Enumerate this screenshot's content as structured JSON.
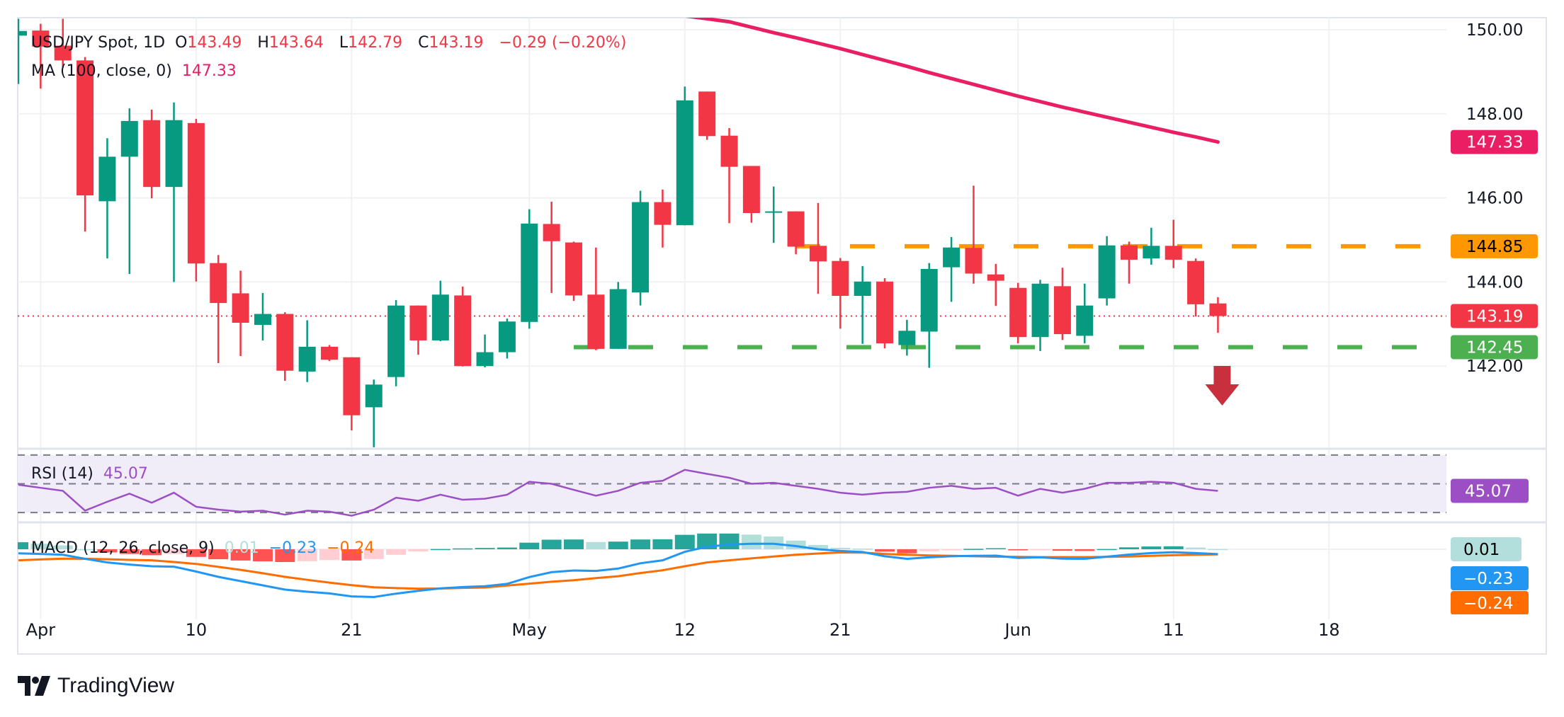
{
  "header": {
    "symbol": "USD/JPY Spot, 1D",
    "o_label": "O",
    "o_value": "143.49",
    "h_label": "H",
    "h_value": "143.64",
    "l_label": "L",
    "l_value": "142.79",
    "c_label": "C",
    "c_value": "143.19",
    "change": "−0.29 (−0.20%)"
  },
  "ma_legend": {
    "label": "MA (100, close, 0)",
    "value": "147.33"
  },
  "rsi_legend": {
    "label": "RSI (14)",
    "value": "45.07"
  },
  "macd_legend": {
    "label": "MACD (12, 26, close, 9)",
    "hist": "0.01",
    "macd": "−0.23",
    "signal": "−0.24"
  },
  "branding": {
    "name": "TradingView"
  },
  "colors": {
    "up": "#089981",
    "down": "#f23645",
    "ma": "#e91e63",
    "resistance": "#ff9800",
    "support": "#4caf50",
    "rsi": "#9c4fc4",
    "macd": "#2196f3",
    "signal": "#ff6d00",
    "hist_up_strong": "#26a69a",
    "hist_up_weak": "#b2dfdb",
    "hist_down_strong": "#ff5252",
    "hist_down_weak": "#ffcdd2",
    "arrow": "#c9303d"
  },
  "chart_data": {
    "type": "candlestick",
    "title": "USD/JPY Spot, 1D",
    "candles_ohlc": [
      [
        149.86,
        150.26,
        148.71,
        149.97
      ],
      [
        149.98,
        150.14,
        148.6,
        149.6
      ],
      [
        149.62,
        150.26,
        149.1,
        149.27
      ],
      [
        149.27,
        149.35,
        145.2,
        146.06
      ],
      [
        145.92,
        147.42,
        144.56,
        146.98
      ],
      [
        146.98,
        148.13,
        144.19,
        147.83
      ],
      [
        147.85,
        148.1,
        145.99,
        146.26
      ],
      [
        146.26,
        148.27,
        144.0,
        147.85
      ],
      [
        147.78,
        147.88,
        144.01,
        144.44
      ],
      [
        144.45,
        144.64,
        142.07,
        143.5
      ],
      [
        143.73,
        144.27,
        142.24,
        143.03
      ],
      [
        142.98,
        143.74,
        142.61,
        143.24
      ],
      [
        143.24,
        143.28,
        141.65,
        141.89
      ],
      [
        141.87,
        143.09,
        141.62,
        142.46
      ],
      [
        142.46,
        142.5,
        142.12,
        142.15
      ],
      [
        142.21,
        142.21,
        140.47,
        140.83
      ],
      [
        141.02,
        141.68,
        140.07,
        141.56
      ],
      [
        141.74,
        143.57,
        141.52,
        143.44
      ],
      [
        143.44,
        143.44,
        142.27,
        142.61
      ],
      [
        142.61,
        144.03,
        142.59,
        143.7
      ],
      [
        143.68,
        143.89,
        141.99,
        142.0
      ],
      [
        142.0,
        142.75,
        141.97,
        142.33
      ],
      [
        142.33,
        143.13,
        142.18,
        143.06
      ],
      [
        143.05,
        145.73,
        142.89,
        145.39
      ],
      [
        145.38,
        145.91,
        143.74,
        144.97
      ],
      [
        144.94,
        144.96,
        143.55,
        143.68
      ],
      [
        143.7,
        144.82,
        142.38,
        142.41
      ],
      [
        142.41,
        144.0,
        142.41,
        143.83
      ],
      [
        143.75,
        146.17,
        143.44,
        145.9
      ],
      [
        145.9,
        146.2,
        144.82,
        145.36
      ],
      [
        145.35,
        148.65,
        145.35,
        148.32
      ],
      [
        148.53,
        148.53,
        147.38,
        147.47
      ],
      [
        147.48,
        147.66,
        145.4,
        146.74
      ],
      [
        146.76,
        146.76,
        145.41,
        145.64
      ],
      [
        145.66,
        146.27,
        144.93,
        145.68
      ],
      [
        145.68,
        145.68,
        144.66,
        144.84
      ],
      [
        144.86,
        145.88,
        143.72,
        144.49
      ],
      [
        144.5,
        144.57,
        142.89,
        143.67
      ],
      [
        143.67,
        144.38,
        142.53,
        144.01
      ],
      [
        144.01,
        144.09,
        142.42,
        142.54
      ],
      [
        142.5,
        143.1,
        142.25,
        142.84
      ],
      [
        142.82,
        144.45,
        141.96,
        144.31
      ],
      [
        144.35,
        145.07,
        143.53,
        144.82
      ],
      [
        144.81,
        146.29,
        143.96,
        144.2
      ],
      [
        144.18,
        144.43,
        143.43,
        144.03
      ],
      [
        143.86,
        143.98,
        142.54,
        142.69
      ],
      [
        142.69,
        144.05,
        142.36,
        143.96
      ],
      [
        143.9,
        144.34,
        142.62,
        142.76
      ],
      [
        142.72,
        143.96,
        142.54,
        143.44
      ],
      [
        143.61,
        145.09,
        143.44,
        144.87
      ],
      [
        144.87,
        144.96,
        143.96,
        144.53
      ],
      [
        144.56,
        145.29,
        144.41,
        144.86
      ],
      [
        144.86,
        145.48,
        144.33,
        144.53
      ],
      [
        144.5,
        144.56,
        143.18,
        143.47
      ],
      [
        143.49,
        143.64,
        142.79,
        143.19
      ]
    ],
    "ma100": [
      null,
      null,
      null,
      null,
      null,
      null,
      null,
      null,
      null,
      null,
      null,
      null,
      null,
      null,
      null,
      null,
      null,
      null,
      null,
      null,
      null,
      null,
      null,
      null,
      null,
      null,
      null,
      null,
      null,
      150.4,
      150.33,
      150.26,
      150.19,
      150.06,
      149.93,
      149.81,
      149.68,
      149.55,
      149.41,
      149.27,
      149.13,
      148.98,
      148.84,
      148.7,
      148.56,
      148.42,
      148.29,
      148.16,
      148.04,
      147.92,
      147.8,
      147.68,
      147.56,
      147.45,
      147.33
    ],
    "levels": {
      "resistance": 144.85,
      "support": 142.45,
      "last_price": 143.19,
      "ma_last": 147.33
    },
    "price_axis": {
      "range": [
        140.05,
        150.28
      ],
      "ticks": [
        {
          "value": 150,
          "label": "150.00"
        },
        {
          "value": 148,
          "label": "148.00"
        },
        {
          "value": 146,
          "label": "146.00"
        },
        {
          "value": 144,
          "label": "144.00"
        },
        {
          "value": 142,
          "label": "142.00"
        }
      ],
      "tags": [
        {
          "value": 147.33,
          "label": "147.33",
          "kind": "ma"
        },
        {
          "value": 144.85,
          "label": "144.85",
          "kind": "resistance"
        },
        {
          "value": 143.19,
          "label": "143.19",
          "kind": "last"
        },
        {
          "value": 142.45,
          "label": "142.45",
          "kind": "support"
        }
      ]
    },
    "time_axis": {
      "ticks": [
        {
          "bar": 1,
          "label": "Apr"
        },
        {
          "bar": 8,
          "label": "10"
        },
        {
          "bar": 15,
          "label": "21"
        },
        {
          "bar": 23,
          "label": "May"
        },
        {
          "bar": 30,
          "label": "12"
        },
        {
          "bar": 37,
          "label": "21"
        },
        {
          "bar": 45,
          "label": "Jun"
        },
        {
          "bar": 52,
          "label": "11"
        },
        {
          "bar": 59,
          "label": "18"
        }
      ]
    },
    "annotation": {
      "type": "down-arrow",
      "bar": 54,
      "price": 141.6
    },
    "rsi": {
      "levels": [
        70,
        50,
        30
      ],
      "values": [
        49.3,
        47.2,
        45.1,
        31.3,
        37.5,
        43.1,
        36.8,
        43.8,
        34.0,
        32.0,
        30.6,
        31.3,
        28.5,
        31.3,
        30.6,
        27.8,
        32.0,
        40.3,
        38.2,
        42.4,
        38.9,
        39.6,
        42.4,
        51.4,
        50.0,
        45.8,
        41.7,
        45.1,
        50.7,
        52.1,
        59.7,
        56.9,
        54.2,
        50.0,
        50.7,
        48.6,
        46.5,
        43.8,
        42.4,
        43.8,
        44.4,
        47.2,
        48.6,
        46.5,
        47.2,
        41.7,
        46.5,
        43.8,
        46.5,
        50.7,
        50.7,
        51.4,
        50.7,
        46.5,
        45.07
      ],
      "tag": "45.07"
    },
    "macd": {
      "macd": [
        -0.19,
        -0.22,
        -0.26,
        -0.45,
        -0.62,
        -0.72,
        -0.8,
        -0.82,
        -1.05,
        -1.3,
        -1.5,
        -1.7,
        -1.9,
        -2.0,
        -2.08,
        -2.22,
        -2.25,
        -2.09,
        -1.96,
        -1.84,
        -1.78,
        -1.74,
        -1.63,
        -1.31,
        -1.08,
        -1.0,
        -1.02,
        -0.91,
        -0.66,
        -0.52,
        -0.12,
        0.12,
        0.22,
        0.26,
        0.26,
        0.15,
        0.0,
        -0.08,
        -0.13,
        -0.33,
        -0.45,
        -0.38,
        -0.33,
        -0.31,
        -0.3,
        -0.41,
        -0.38,
        -0.44,
        -0.45,
        -0.35,
        -0.25,
        -0.18,
        -0.14,
        -0.18,
        -0.23
      ],
      "signal": [
        -0.52,
        -0.48,
        -0.44,
        -0.45,
        -0.47,
        -0.5,
        -0.52,
        -0.6,
        -0.69,
        -0.83,
        -0.97,
        -1.13,
        -1.3,
        -1.44,
        -1.57,
        -1.69,
        -1.79,
        -1.83,
        -1.86,
        -1.85,
        -1.82,
        -1.8,
        -1.71,
        -1.62,
        -1.53,
        -1.46,
        -1.36,
        -1.27,
        -1.12,
        -0.99,
        -0.8,
        -0.62,
        -0.52,
        -0.43,
        -0.34,
        -0.26,
        -0.2,
        -0.15,
        -0.16,
        -0.22,
        -0.26,
        -0.29,
        -0.31,
        -0.33,
        -0.35,
        -0.36,
        -0.37,
        -0.37,
        -0.37,
        -0.36,
        -0.34,
        -0.31,
        -0.28,
        -0.26,
        -0.24
      ],
      "tags": [
        {
          "label": "0.01",
          "kind": "hist"
        },
        {
          "label": "−0.23",
          "kind": "macd"
        },
        {
          "label": "−0.24",
          "kind": "signal"
        }
      ]
    }
  }
}
